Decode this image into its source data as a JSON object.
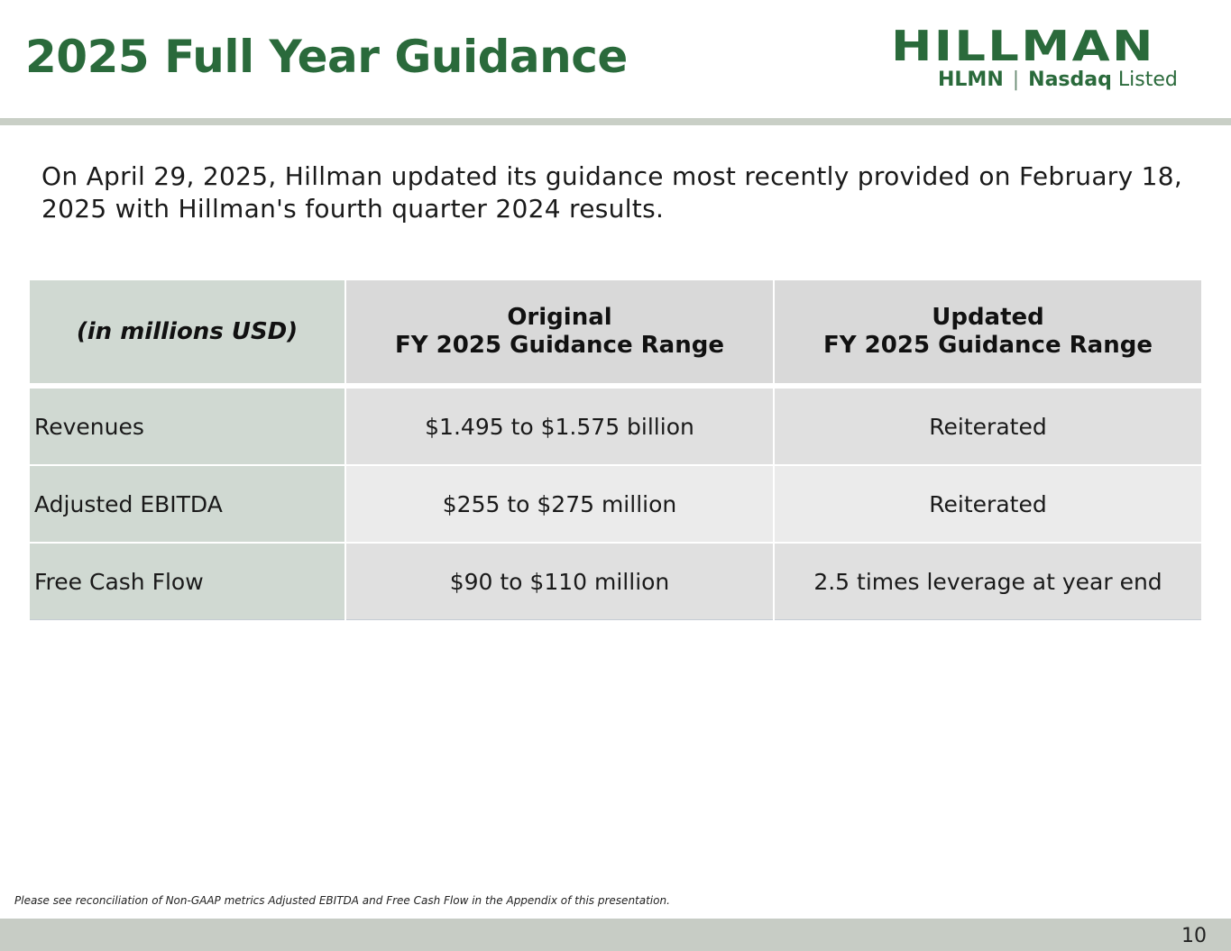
{
  "header": {
    "title": "2025 Full Year Guidance",
    "logo": {
      "wordmark": "HILLMAN",
      "ticker": "HLMN",
      "separator": "|",
      "exchange": "Nasdaq",
      "listed": "Listed"
    }
  },
  "intro": "On April 29, 2025, Hillman updated its guidance most recently provided on February 18, 2025 with Hillman's fourth quarter 2024 results.",
  "table": {
    "headers": {
      "col1": "(in millions USD)",
      "col2_line1": "Original",
      "col2_line2": "FY 2025 Guidance Range",
      "col3_line1": "Updated",
      "col3_line2": "FY 2025 Guidance Range"
    },
    "rows": [
      {
        "metric": "Revenues",
        "original": "$1.495 to $1.575 billion",
        "updated": "Reiterated"
      },
      {
        "metric": "Adjusted EBITDA",
        "original": "$255 to $275 million",
        "updated": "Reiterated"
      },
      {
        "metric": "Free Cash Flow",
        "original": "$90 to $110 million",
        "updated": "2.5 times leverage at year end"
      }
    ]
  },
  "footnote": "Please see reconciliation of Non-GAAP metrics Adjusted EBITDA and Free Cash Flow in the Appendix of this presentation.",
  "page_number": "10",
  "colors": {
    "brand_green": "#2a6a3b",
    "label_cell": "#d0d9d2",
    "header_cell": "#d9d9d9",
    "footer_bar": "#c7ccc5"
  }
}
